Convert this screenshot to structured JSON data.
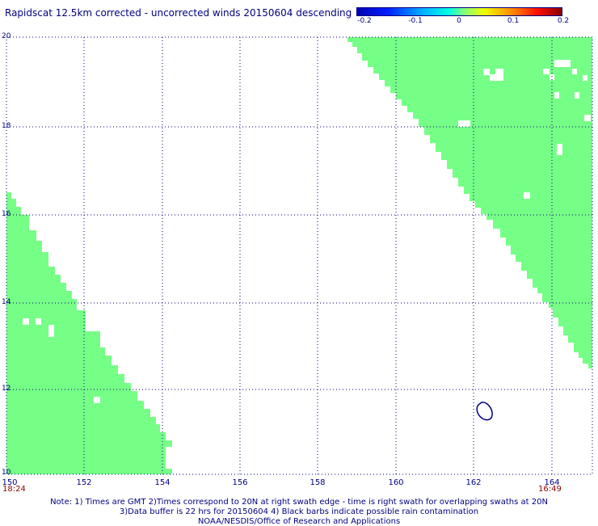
{
  "title": "Rapidscat 12.5km corrected - uncorrected winds 20150604 descending",
  "colorbar": {
    "ticks": [
      "-0.2",
      "-0.1",
      "0",
      "0.1",
      "0.2"
    ]
  },
  "axes": {
    "lat_labels": [
      "20",
      "18",
      "16",
      "14",
      "12",
      "10"
    ],
    "lon_labels": [
      "150",
      "152",
      "154",
      "156",
      "158",
      "160",
      "162",
      "164"
    ]
  },
  "swath_times": {
    "left": "18:24",
    "right": "16:49"
  },
  "notes": {
    "line1": "Note: 1) Times are GMT 2)Times correspond to 20N at right swath edge - time is right swath for overlapping swaths at 20N",
    "line2": "3)Data buffer is 22 hrs for 20150604 4) Black barbs indicate possible rain contamination",
    "line3": "NOAA/NESDIS/Office of Research and Applications"
  },
  "colors": {
    "swath_fill": "#76ff86",
    "grid": "#000080",
    "text": "#000080",
    "time_text": "#8b0000"
  }
}
